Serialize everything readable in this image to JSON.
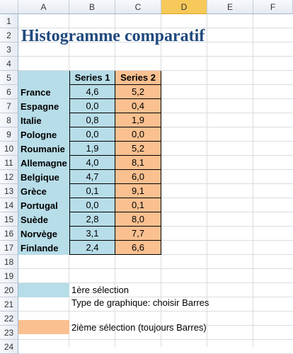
{
  "columns": [
    "A",
    "B",
    "C",
    "D",
    "E",
    "F"
  ],
  "selected_column": "D",
  "rows": [
    "1",
    "2",
    "3",
    "4",
    "5",
    "6",
    "7",
    "8",
    "9",
    "10",
    "11",
    "12",
    "13",
    "14",
    "15",
    "16",
    "17",
    "18",
    "19",
    "20",
    "21",
    "22",
    "23",
    "24"
  ],
  "title": "Histogramme comparatif",
  "table": {
    "header": [
      "",
      "Series 1",
      "Series 2"
    ],
    "rows": [
      {
        "country": "France",
        "s1": "4,6",
        "s2": "5,2"
      },
      {
        "country": "Espagne",
        "s1": "0,0",
        "s2": "0,4"
      },
      {
        "country": "Italie",
        "s1": "0,8",
        "s2": "1,9"
      },
      {
        "country": "Pologne",
        "s1": "0,0",
        "s2": "0,0"
      },
      {
        "country": "Roumanie",
        "s1": "1,9",
        "s2": "5,2"
      },
      {
        "country": "Allemagne",
        "s1": "4,0",
        "s2": "8,1"
      },
      {
        "country": "Belgique",
        "s1": "4,7",
        "s2": "6,0"
      },
      {
        "country": "Grèce",
        "s1": "0,1",
        "s2": "9,1"
      },
      {
        "country": "Portugal",
        "s1": "0,0",
        "s2": "0,1"
      },
      {
        "country": "Suède",
        "s1": "2,8",
        "s2": "8,0"
      },
      {
        "country": "Norvège",
        "s1": "3,1",
        "s2": "7,7"
      },
      {
        "country": "Finlande",
        "s1": "2,4",
        "s2": "6,6"
      }
    ]
  },
  "notes": {
    "sel1": "1ère sélection",
    "chart_type": "Type de graphique: choisir Barres",
    "sel2": "2ième sélection (toujours Barres)"
  },
  "colors": {
    "series1": "#b7dde8",
    "series2": "#fac090",
    "title": "#1f497d",
    "selected_header": "#f7c95a"
  }
}
